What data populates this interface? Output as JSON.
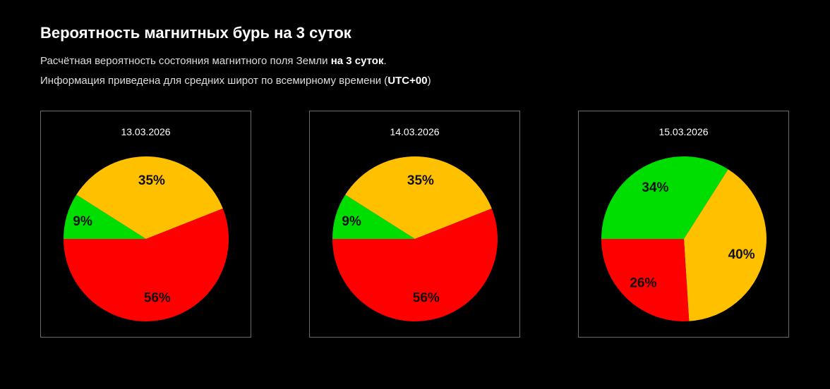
{
  "header": {
    "title": "Вероятность магнитных бурь на 3 суток",
    "line1_prefix": "Расчётная вероятность состояния магнитного поля Земли ",
    "line1_bold": "на 3 суток",
    "line1_suffix": ".",
    "line2_prefix": "Информация приведена для средних широт по всемирному времени (",
    "line2_bold": "UTC+00",
    "line2_suffix": ")"
  },
  "colors": {
    "green": "#00dd00",
    "yellow": "#ffc000",
    "red": "#ff0000"
  },
  "chart_data": [
    {
      "type": "pie",
      "title": "13.03.2026",
      "categories": [
        "green",
        "yellow",
        "red"
      ],
      "values": [
        9,
        35,
        56
      ],
      "labels": [
        "9%",
        "35%",
        "56%"
      ]
    },
    {
      "type": "pie",
      "title": "14.03.2026",
      "categories": [
        "green",
        "yellow",
        "red"
      ],
      "values": [
        9,
        35,
        56
      ],
      "labels": [
        "9%",
        "35%",
        "56%"
      ]
    },
    {
      "type": "pie",
      "title": "15.03.2026",
      "categories": [
        "green",
        "yellow",
        "red"
      ],
      "values": [
        34,
        40,
        26
      ],
      "labels": [
        "34%",
        "40%",
        "26%"
      ]
    }
  ]
}
